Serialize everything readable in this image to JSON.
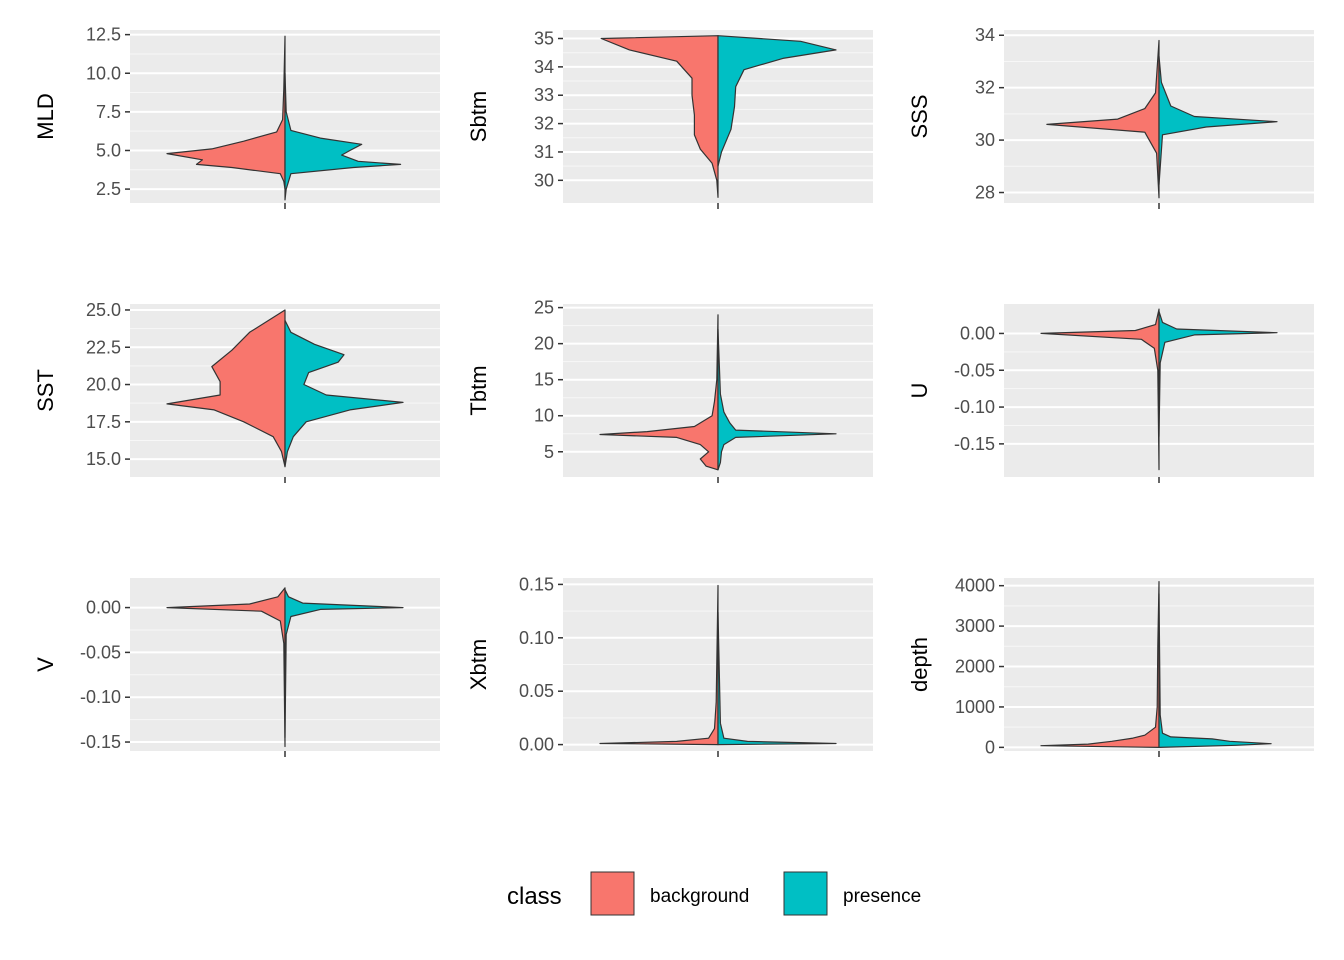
{
  "chart_data": [
    {
      "type": "split-violin",
      "ylabel": "MLD",
      "ylim": [
        1.6,
        12.8
      ],
      "yticks": [
        2.5,
        5.0,
        7.5,
        10.0,
        12.5
      ],
      "ytick_labels": [
        "2.5",
        "5.0",
        "7.5",
        "10.0",
        "12.5"
      ],
      "series": [
        {
          "name": "background",
          "range": [
            2.5,
            12.4
          ],
          "density": [
            [
              2.5,
              0.0
            ],
            [
              3.0,
              0.01
            ],
            [
              3.5,
              0.04
            ],
            [
              3.9,
              0.45
            ],
            [
              4.1,
              0.75
            ],
            [
              4.4,
              0.7
            ],
            [
              4.8,
              1.0
            ],
            [
              5.1,
              0.62
            ],
            [
              5.6,
              0.35
            ],
            [
              6.2,
              0.07
            ],
            [
              7.0,
              0.02
            ],
            [
              9.0,
              0.01
            ],
            [
              12.4,
              0.0
            ]
          ]
        },
        {
          "name": "presence",
          "range": [
            1.8,
            10.0
          ],
          "density": [
            [
              1.8,
              0.0
            ],
            [
              2.5,
              0.01
            ],
            [
              3.5,
              0.05
            ],
            [
              3.9,
              0.58
            ],
            [
              4.1,
              0.98
            ],
            [
              4.3,
              0.62
            ],
            [
              4.7,
              0.48
            ],
            [
              5.0,
              0.55
            ],
            [
              5.4,
              0.65
            ],
            [
              5.8,
              0.3
            ],
            [
              6.3,
              0.05
            ],
            [
              7.5,
              0.01
            ],
            [
              10.0,
              0.0
            ]
          ]
        }
      ]
    },
    {
      "type": "split-violin",
      "ylabel": "Sbtm",
      "ylim": [
        29.2,
        35.3
      ],
      "yticks": [
        30,
        31,
        32,
        33,
        34,
        35
      ],
      "ytick_labels": [
        "30",
        "31",
        "32",
        "33",
        "34",
        "35"
      ],
      "series": [
        {
          "name": "background",
          "range": [
            29.4,
            35.1
          ],
          "density": [
            [
              29.4,
              0.0
            ],
            [
              30.0,
              0.01
            ],
            [
              30.6,
              0.05
            ],
            [
              31.1,
              0.15
            ],
            [
              31.6,
              0.2
            ],
            [
              32.3,
              0.2
            ],
            [
              33.0,
              0.22
            ],
            [
              33.6,
              0.22
            ],
            [
              34.2,
              0.35
            ],
            [
              34.6,
              0.75
            ],
            [
              35.0,
              0.99
            ],
            [
              35.1,
              0.0
            ]
          ]
        },
        {
          "name": "presence",
          "range": [
            30.5,
            35.1
          ],
          "density": [
            [
              30.5,
              0.0
            ],
            [
              31.0,
              0.03
            ],
            [
              31.8,
              0.11
            ],
            [
              32.6,
              0.14
            ],
            [
              33.3,
              0.15
            ],
            [
              33.9,
              0.22
            ],
            [
              34.3,
              0.55
            ],
            [
              34.6,
              1.0
            ],
            [
              34.9,
              0.7
            ],
            [
              35.1,
              0.0
            ]
          ]
        }
      ]
    },
    {
      "type": "split-violin",
      "ylabel": "SSS",
      "ylim": [
        27.6,
        34.2
      ],
      "yticks": [
        28,
        30,
        32,
        34
      ],
      "ytick_labels": [
        "28",
        "30",
        "32",
        "34"
      ],
      "series": [
        {
          "name": "background",
          "range": [
            27.8,
            33.8
          ],
          "density": [
            [
              27.8,
              0.0
            ],
            [
              29.5,
              0.02
            ],
            [
              30.3,
              0.12
            ],
            [
              30.6,
              0.95
            ],
            [
              30.8,
              0.35
            ],
            [
              31.2,
              0.12
            ],
            [
              31.8,
              0.03
            ],
            [
              33.8,
              0.0
            ]
          ]
        },
        {
          "name": "presence",
          "range": [
            28.3,
            33.2
          ],
          "density": [
            [
              28.3,
              0.0
            ],
            [
              30.2,
              0.03
            ],
            [
              30.5,
              0.4
            ],
            [
              30.7,
              1.0
            ],
            [
              30.9,
              0.3
            ],
            [
              31.3,
              0.1
            ],
            [
              32.2,
              0.02
            ],
            [
              33.2,
              0.0
            ]
          ]
        }
      ]
    },
    {
      "type": "split-violin",
      "ylabel": "SST",
      "ylim": [
        13.8,
        25.4
      ],
      "yticks": [
        15.0,
        17.5,
        20.0,
        22.5,
        25.0
      ],
      "ytick_labels": [
        "15.0",
        "17.5",
        "20.0",
        "22.5",
        "25.0"
      ],
      "series": [
        {
          "name": "background",
          "range": [
            14.5,
            25.0
          ],
          "density": [
            [
              14.5,
              0.0
            ],
            [
              15.5,
              0.03
            ],
            [
              16.5,
              0.1
            ],
            [
              17.5,
              0.35
            ],
            [
              18.3,
              0.6
            ],
            [
              18.7,
              1.0
            ],
            [
              19.3,
              0.55
            ],
            [
              20.2,
              0.55
            ],
            [
              21.2,
              0.62
            ],
            [
              22.3,
              0.45
            ],
            [
              23.5,
              0.3
            ],
            [
              25.0,
              0.0
            ]
          ]
        },
        {
          "name": "presence",
          "range": [
            14.5,
            24.3
          ],
          "density": [
            [
              14.5,
              0.0
            ],
            [
              15.5,
              0.02
            ],
            [
              16.5,
              0.07
            ],
            [
              17.5,
              0.18
            ],
            [
              18.3,
              0.55
            ],
            [
              18.8,
              1.0
            ],
            [
              19.3,
              0.35
            ],
            [
              20.0,
              0.16
            ],
            [
              20.8,
              0.2
            ],
            [
              21.5,
              0.45
            ],
            [
              22.0,
              0.5
            ],
            [
              22.7,
              0.25
            ],
            [
              23.5,
              0.05
            ],
            [
              24.3,
              0.0
            ]
          ]
        }
      ]
    },
    {
      "type": "split-violin",
      "ylabel": "Tbtm",
      "ylim": [
        1.5,
        25.5
      ],
      "yticks": [
        5,
        10,
        15,
        20,
        25
      ],
      "ytick_labels": [
        "5",
        "10",
        "15",
        "20",
        "25"
      ],
      "series": [
        {
          "name": "background",
          "range": [
            2.5,
            24.0
          ],
          "density": [
            [
              2.5,
              0.0
            ],
            [
              3.0,
              0.1
            ],
            [
              4.0,
              0.15
            ],
            [
              5.0,
              0.08
            ],
            [
              6.0,
              0.15
            ],
            [
              7.0,
              0.35
            ],
            [
              7.4,
              1.0
            ],
            [
              7.8,
              0.6
            ],
            [
              8.5,
              0.2
            ],
            [
              10.0,
              0.05
            ],
            [
              12.0,
              0.03
            ],
            [
              15.0,
              0.01
            ],
            [
              24.0,
              0.0
            ]
          ]
        },
        {
          "name": "presence",
          "range": [
            2.5,
            22.0
          ],
          "density": [
            [
              2.5,
              0.0
            ],
            [
              3.5,
              0.02
            ],
            [
              5.0,
              0.03
            ],
            [
              6.0,
              0.05
            ],
            [
              7.0,
              0.15
            ],
            [
              7.5,
              1.0
            ],
            [
              8.0,
              0.15
            ],
            [
              9.0,
              0.1
            ],
            [
              10.5,
              0.05
            ],
            [
              13.0,
              0.02
            ],
            [
              22.0,
              0.0
            ]
          ]
        }
      ]
    },
    {
      "type": "split-violin",
      "ylabel": "U",
      "ylim": [
        -0.195,
        0.04
      ],
      "yticks": [
        -0.15,
        -0.1,
        -0.05,
        0.0
      ],
      "ytick_labels": [
        "-0.15",
        "-0.10",
        "-0.05",
        "0.00"
      ],
      "series": [
        {
          "name": "background",
          "range": [
            -0.185,
            0.033
          ],
          "density": [
            [
              -0.185,
              0.0
            ],
            [
              -0.05,
              0.01
            ],
            [
              -0.02,
              0.04
            ],
            [
              -0.008,
              0.15
            ],
            [
              0.0,
              1.0
            ],
            [
              0.004,
              0.2
            ],
            [
              0.012,
              0.03
            ],
            [
              0.033,
              0.0
            ]
          ]
        },
        {
          "name": "presence",
          "range": [
            -0.14,
            0.03
          ],
          "density": [
            [
              -0.14,
              0.0
            ],
            [
              -0.04,
              0.01
            ],
            [
              -0.012,
              0.05
            ],
            [
              -0.002,
              0.3
            ],
            [
              0.001,
              1.0
            ],
            [
              0.006,
              0.15
            ],
            [
              0.015,
              0.03
            ],
            [
              0.03,
              0.0
            ]
          ]
        }
      ]
    },
    {
      "type": "split-violin",
      "ylabel": "V",
      "ylim": [
        -0.16,
        0.033
      ],
      "yticks": [
        -0.15,
        -0.1,
        -0.05,
        0.0
      ],
      "ytick_labels": [
        "-0.15",
        "-0.10",
        "-0.05",
        "0.00"
      ],
      "series": [
        {
          "name": "background",
          "range": [
            -0.155,
            0.022
          ],
          "density": [
            [
              -0.155,
              0.0
            ],
            [
              -0.04,
              0.01
            ],
            [
              -0.015,
              0.04
            ],
            [
              -0.004,
              0.2
            ],
            [
              0.0,
              1.0
            ],
            [
              0.004,
              0.3
            ],
            [
              0.012,
              0.06
            ],
            [
              0.022,
              0.0
            ]
          ]
        },
        {
          "name": "presence",
          "range": [
            -0.145,
            0.02
          ],
          "density": [
            [
              -0.145,
              0.0
            ],
            [
              -0.03,
              0.01
            ],
            [
              -0.01,
              0.05
            ],
            [
              -0.002,
              0.3
            ],
            [
              0.0,
              1.0
            ],
            [
              0.005,
              0.15
            ],
            [
              0.012,
              0.03
            ],
            [
              0.02,
              0.0
            ]
          ]
        }
      ]
    },
    {
      "type": "split-violin",
      "ylabel": "Xbtm",
      "ylim": [
        -0.006,
        0.156
      ],
      "yticks": [
        0.0,
        0.05,
        0.1,
        0.15
      ],
      "ytick_labels": [
        "0.00",
        "0.05",
        "0.10",
        "0.15"
      ],
      "series": [
        {
          "name": "background",
          "range": [
            0.0,
            0.149
          ],
          "density": [
            [
              0.0,
              0.0
            ],
            [
              0.001,
              1.0
            ],
            [
              0.003,
              0.35
            ],
            [
              0.006,
              0.08
            ],
            [
              0.015,
              0.03
            ],
            [
              0.04,
              0.015
            ],
            [
              0.149,
              0.0
            ]
          ]
        },
        {
          "name": "presence",
          "range": [
            0.0,
            0.124
          ],
          "density": [
            [
              0.0,
              0.0
            ],
            [
              0.001,
              1.0
            ],
            [
              0.003,
              0.25
            ],
            [
              0.006,
              0.05
            ],
            [
              0.02,
              0.02
            ],
            [
              0.124,
              0.0
            ]
          ]
        }
      ]
    },
    {
      "type": "split-violin",
      "ylabel": "depth",
      "ylim": [
        -90,
        4190
      ],
      "yticks": [
        0,
        1000,
        2000,
        3000,
        4000
      ],
      "ytick_labels": [
        "0",
        "1000",
        "2000",
        "3000",
        "4000"
      ],
      "series": [
        {
          "name": "background",
          "range": [
            0,
            4100
          ],
          "density": [
            [
              0,
              0.0
            ],
            [
              40,
              1.0
            ],
            [
              80,
              0.6
            ],
            [
              150,
              0.4
            ],
            [
              230,
              0.22
            ],
            [
              300,
              0.12
            ],
            [
              500,
              0.03
            ],
            [
              1000,
              0.015
            ],
            [
              2500,
              0.01
            ],
            [
              4100,
              0.0
            ]
          ]
        },
        {
          "name": "presence",
          "range": [
            0,
            3800
          ],
          "density": [
            [
              0,
              0.0
            ],
            [
              50,
              0.65
            ],
            [
              90,
              0.95
            ],
            [
              150,
              0.6
            ],
            [
              210,
              0.45
            ],
            [
              260,
              0.1
            ],
            [
              350,
              0.03
            ],
            [
              800,
              0.01
            ],
            [
              3800,
              0.0
            ]
          ]
        }
      ]
    }
  ],
  "legend": {
    "title": "class",
    "items": [
      {
        "label": "background",
        "color": "#F8766D"
      },
      {
        "label": "presence",
        "color": "#00BFC4"
      }
    ]
  },
  "colors": {
    "panel": "#EBEBEB",
    "grid_major": "#FFFFFF",
    "outline": "#333333"
  }
}
